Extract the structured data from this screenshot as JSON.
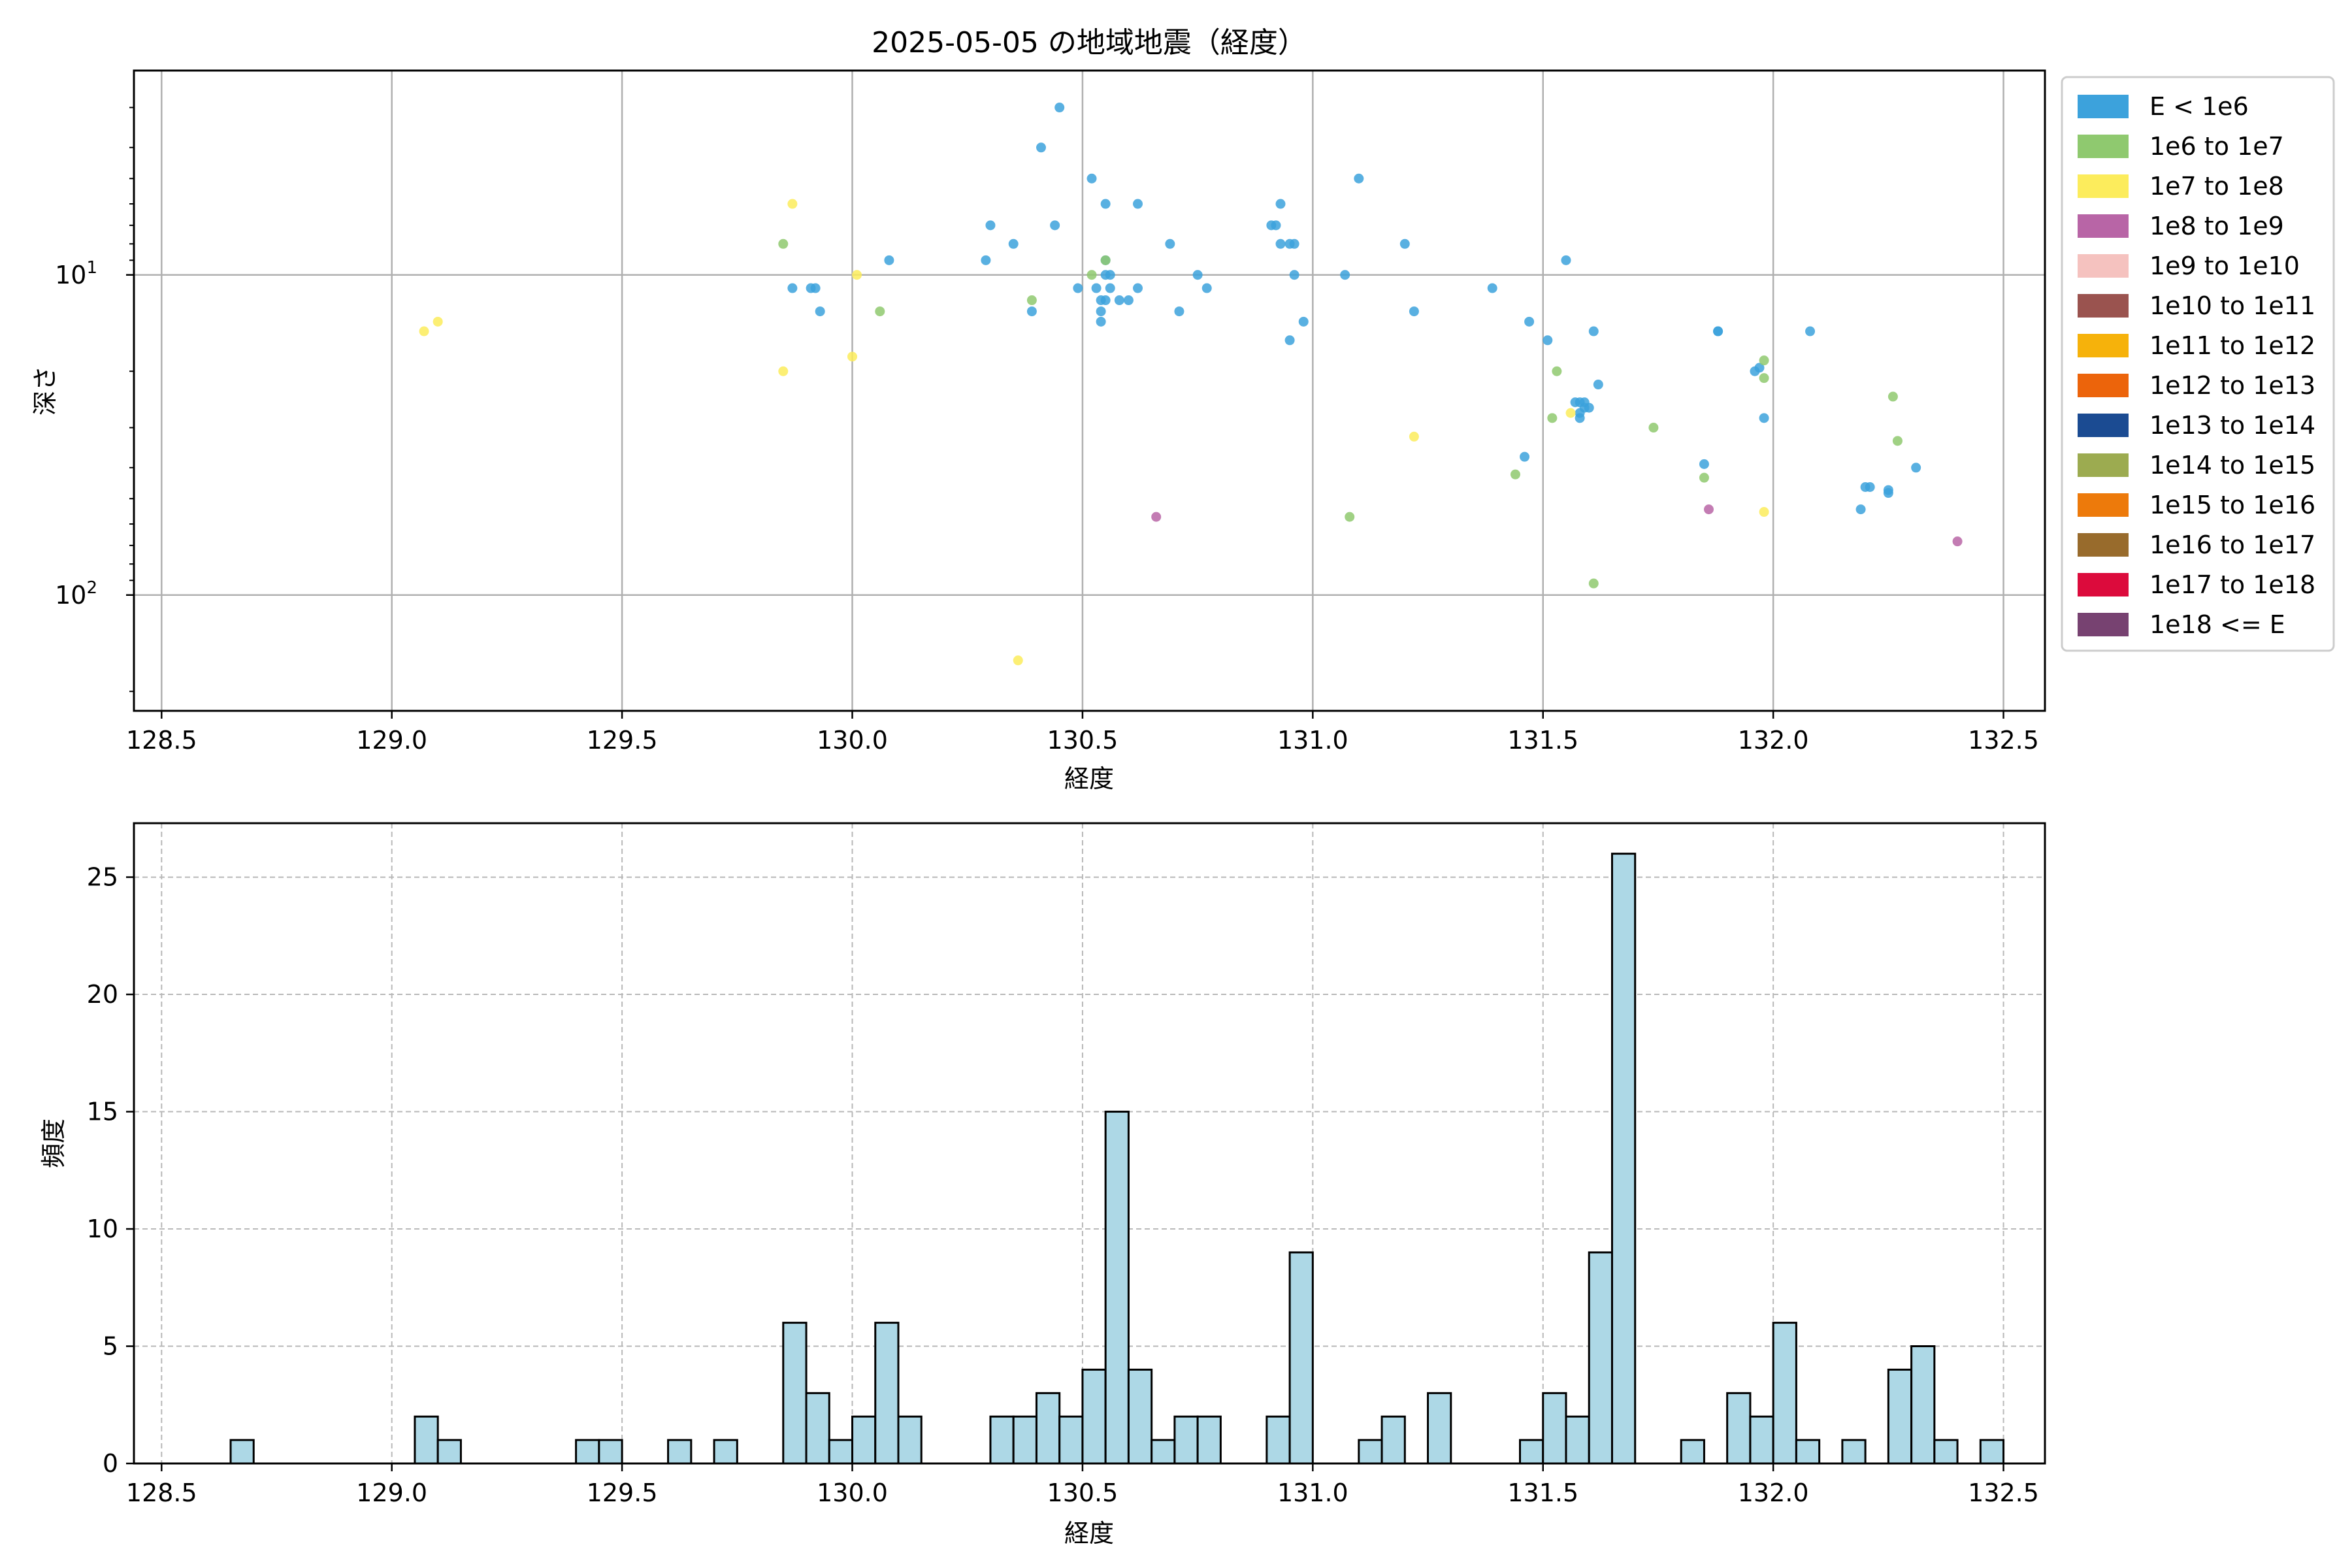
{
  "chart_data": [
    {
      "type": "scatter",
      "title": "2025-05-05 の地域地震（経度）",
      "xlabel": "経度",
      "ylabel": "深さ",
      "xlim": [
        128.44,
        132.59
      ],
      "ylim": [
        230,
        2.3
      ],
      "yscale": "log",
      "y_inverted": true,
      "grid": true,
      "x_ticks": [
        "128.5",
        "129.0",
        "129.5",
        "130.0",
        "130.5",
        "131.0",
        "131.5",
        "132.0",
        "132.5"
      ],
      "y_ticks": [
        {
          "value": 10,
          "base": "10",
          "exp": "1"
        },
        {
          "value": 100,
          "base": "10",
          "exp": "2"
        }
      ],
      "legend": {
        "position": "outside-right",
        "entries": [
          {
            "label": "E < 1e6",
            "color": "#3ca2dc"
          },
          {
            "label": "1e6 to 1e7",
            "color": "#8fc96f"
          },
          {
            "label": "1e7 to 1e8",
            "color": "#fcec5c"
          },
          {
            "label": "1e8 to 1e9",
            "color": "#b865a6"
          },
          {
            "label": "1e9 to 1e10",
            "color": "#f5c2bf"
          },
          {
            "label": "1e10 to 1e11",
            "color": "#9a534f"
          },
          {
            "label": "1e11 to 1e12",
            "color": "#f6b20b"
          },
          {
            "label": "1e12 to 1e13",
            "color": "#ec640b"
          },
          {
            "label": "1e13 to 1e14",
            "color": "#1b4b92"
          },
          {
            "label": "1e14 to 1e15",
            "color": "#9cab50"
          },
          {
            "label": "1e15 to 1e16",
            "color": "#ed7a0b"
          },
          {
            "label": "1e16 to 1e17",
            "color": "#986b2c"
          },
          {
            "label": "1e17 to 1e18",
            "color": "#dc0b3c"
          },
          {
            "label": "1e18 <= E",
            "color": "#774271"
          }
        ]
      },
      "points": [
        {
          "x": 130.45,
          "y": 3.0,
          "c": 0
        },
        {
          "x": 130.41,
          "y": 4.0,
          "c": 0
        },
        {
          "x": 130.52,
          "y": 5.0,
          "c": 0
        },
        {
          "x": 130.55,
          "y": 6.0,
          "c": 0
        },
        {
          "x": 130.62,
          "y": 6.0,
          "c": 0
        },
        {
          "x": 130.3,
          "y": 7.0,
          "c": 0
        },
        {
          "x": 130.44,
          "y": 7.0,
          "c": 0
        },
        {
          "x": 130.35,
          "y": 8.0,
          "c": 0
        },
        {
          "x": 130.69,
          "y": 8.0,
          "c": 0
        },
        {
          "x": 130.29,
          "y": 9.0,
          "c": 0
        },
        {
          "x": 130.08,
          "y": 9.0,
          "c": 0
        },
        {
          "x": 130.55,
          "y": 9.0,
          "c": 0
        },
        {
          "x": 130.55,
          "y": 10.0,
          "c": 0
        },
        {
          "x": 130.56,
          "y": 10.0,
          "c": 0
        },
        {
          "x": 130.75,
          "y": 10.0,
          "c": 0
        },
        {
          "x": 129.87,
          "y": 11.0,
          "c": 0
        },
        {
          "x": 129.91,
          "y": 11.0,
          "c": 0
        },
        {
          "x": 129.92,
          "y": 11.0,
          "c": 0
        },
        {
          "x": 130.49,
          "y": 11.0,
          "c": 0
        },
        {
          "x": 130.53,
          "y": 11.0,
          "c": 0
        },
        {
          "x": 130.56,
          "y": 11.0,
          "c": 0
        },
        {
          "x": 130.62,
          "y": 11.0,
          "c": 0
        },
        {
          "x": 130.77,
          "y": 11.0,
          "c": 0
        },
        {
          "x": 130.54,
          "y": 12.0,
          "c": 0
        },
        {
          "x": 130.55,
          "y": 12.0,
          "c": 0
        },
        {
          "x": 130.58,
          "y": 12.0,
          "c": 0
        },
        {
          "x": 130.6,
          "y": 12.0,
          "c": 0
        },
        {
          "x": 129.93,
          "y": 13.0,
          "c": 0
        },
        {
          "x": 130.39,
          "y": 13.0,
          "c": 0
        },
        {
          "x": 130.54,
          "y": 13.0,
          "c": 0
        },
        {
          "x": 130.71,
          "y": 13.0,
          "c": 0
        },
        {
          "x": 130.54,
          "y": 14.0,
          "c": 0
        },
        {
          "x": 130.91,
          "y": 7.0,
          "c": 0
        },
        {
          "x": 130.92,
          "y": 7.0,
          "c": 0
        },
        {
          "x": 130.93,
          "y": 6.0,
          "c": 0
        },
        {
          "x": 130.93,
          "y": 8.0,
          "c": 0
        },
        {
          "x": 130.95,
          "y": 8.0,
          "c": 0
        },
        {
          "x": 130.96,
          "y": 8.0,
          "c": 0
        },
        {
          "x": 130.96,
          "y": 10.0,
          "c": 0
        },
        {
          "x": 131.07,
          "y": 10.0,
          "c": 0
        },
        {
          "x": 131.1,
          "y": 5.0,
          "c": 0
        },
        {
          "x": 131.2,
          "y": 8.0,
          "c": 0
        },
        {
          "x": 130.98,
          "y": 14.0,
          "c": 0
        },
        {
          "x": 130.95,
          "y": 16.0,
          "c": 0
        },
        {
          "x": 131.22,
          "y": 13.0,
          "c": 0
        },
        {
          "x": 131.39,
          "y": 11.0,
          "c": 0
        },
        {
          "x": 131.47,
          "y": 14.0,
          "c": 0
        },
        {
          "x": 131.51,
          "y": 16.0,
          "c": 0
        },
        {
          "x": 131.55,
          "y": 9.0,
          "c": 0
        },
        {
          "x": 131.61,
          "y": 15.0,
          "c": 0
        },
        {
          "x": 131.62,
          "y": 22.0,
          "c": 0
        },
        {
          "x": 131.57,
          "y": 25.0,
          "c": 0
        },
        {
          "x": 131.58,
          "y": 25.0,
          "c": 0
        },
        {
          "x": 131.59,
          "y": 25.0,
          "c": 0
        },
        {
          "x": 131.59,
          "y": 26.0,
          "c": 0
        },
        {
          "x": 131.6,
          "y": 26.0,
          "c": 0
        },
        {
          "x": 131.58,
          "y": 27.0,
          "c": 0
        },
        {
          "x": 131.58,
          "y": 28.0,
          "c": 0
        },
        {
          "x": 131.46,
          "y": 37.0,
          "c": 0
        },
        {
          "x": 131.88,
          "y": 15.0,
          "c": 0
        },
        {
          "x": 131.88,
          "y": 15.0,
          "c": 0
        },
        {
          "x": 132.08,
          "y": 15.0,
          "c": 0
        },
        {
          "x": 131.96,
          "y": 20.0,
          "c": 0
        },
        {
          "x": 131.97,
          "y": 19.5,
          "c": 0
        },
        {
          "x": 131.98,
          "y": 28.0,
          "c": 0
        },
        {
          "x": 131.85,
          "y": 39.0,
          "c": 0
        },
        {
          "x": 132.31,
          "y": 40.0,
          "c": 0
        },
        {
          "x": 132.2,
          "y": 46.0,
          "c": 0
        },
        {
          "x": 132.21,
          "y": 46.0,
          "c": 0
        },
        {
          "x": 132.25,
          "y": 47.0,
          "c": 0
        },
        {
          "x": 132.25,
          "y": 48.0,
          "c": 0
        },
        {
          "x": 132.19,
          "y": 54.0,
          "c": 0
        },
        {
          "x": 129.85,
          "y": 8.0,
          "c": 1
        },
        {
          "x": 130.06,
          "y": 13.0,
          "c": 1
        },
        {
          "x": 130.39,
          "y": 12.0,
          "c": 1
        },
        {
          "x": 130.52,
          "y": 10.0,
          "c": 1
        },
        {
          "x": 130.55,
          "y": 9.0,
          "c": 1
        },
        {
          "x": 131.53,
          "y": 20.0,
          "c": 1
        },
        {
          "x": 131.52,
          "y": 28.0,
          "c": 1
        },
        {
          "x": 131.44,
          "y": 42.0,
          "c": 1
        },
        {
          "x": 131.74,
          "y": 30.0,
          "c": 1
        },
        {
          "x": 131.85,
          "y": 43.0,
          "c": 1
        },
        {
          "x": 131.98,
          "y": 18.5,
          "c": 1
        },
        {
          "x": 131.98,
          "y": 21.0,
          "c": 1
        },
        {
          "x": 132.26,
          "y": 24.0,
          "c": 1
        },
        {
          "x": 132.27,
          "y": 33.0,
          "c": 1
        },
        {
          "x": 131.08,
          "y": 57.0,
          "c": 1
        },
        {
          "x": 131.61,
          "y": 92.0,
          "c": 1
        },
        {
          "x": 129.07,
          "y": 15.0,
          "c": 2
        },
        {
          "x": 129.1,
          "y": 14.0,
          "c": 2
        },
        {
          "x": 129.87,
          "y": 6.0,
          "c": 2
        },
        {
          "x": 130.01,
          "y": 10.0,
          "c": 2
        },
        {
          "x": 129.85,
          "y": 20.0,
          "c": 2
        },
        {
          "x": 130.0,
          "y": 18.0,
          "c": 2
        },
        {
          "x": 131.22,
          "y": 32.0,
          "c": 2
        },
        {
          "x": 131.56,
          "y": 27.0,
          "c": 2
        },
        {
          "x": 131.98,
          "y": 55.0,
          "c": 2
        },
        {
          "x": 130.36,
          "y": 160.0,
          "c": 2
        },
        {
          "x": 130.66,
          "y": 57.0,
          "c": 3
        },
        {
          "x": 131.86,
          "y": 54.0,
          "c": 3
        },
        {
          "x": 132.4,
          "y": 68.0,
          "c": 3
        }
      ]
    },
    {
      "type": "bar",
      "subtype": "histogram",
      "xlabel": "経度",
      "ylabel": "頻度",
      "xlim": [
        128.44,
        132.59
      ],
      "ylim": [
        0,
        27.3
      ],
      "grid": true,
      "grid_style": "dashed",
      "x_ticks": [
        "128.5",
        "129.0",
        "129.5",
        "130.0",
        "130.5",
        "131.0",
        "131.5",
        "132.0",
        "132.5"
      ],
      "y_ticks": [
        "0",
        "5",
        "10",
        "15",
        "20",
        "25"
      ],
      "bar_color": "#add8e6",
      "edge_color": "#000000",
      "bin_start": 128.5,
      "bin_width": 0.05,
      "counts": [
        0,
        0,
        0,
        1,
        0,
        0,
        0,
        0,
        0,
        0,
        0,
        2,
        1,
        0,
        0,
        0,
        0,
        0,
        1,
        1,
        0,
        0,
        1,
        0,
        1,
        0,
        0,
        6,
        3,
        1,
        2,
        6,
        2,
        0,
        0,
        0,
        2,
        2,
        3,
        2,
        4,
        15,
        4,
        1,
        2,
        2,
        0,
        0,
        2,
        9,
        0,
        0,
        1,
        2,
        0,
        3,
        0,
        0,
        0,
        1,
        3,
        2,
        9,
        26,
        0,
        0,
        1,
        0,
        3,
        2,
        6,
        1,
        0,
        1,
        0,
        4,
        5,
        1,
        0,
        1
      ]
    }
  ]
}
